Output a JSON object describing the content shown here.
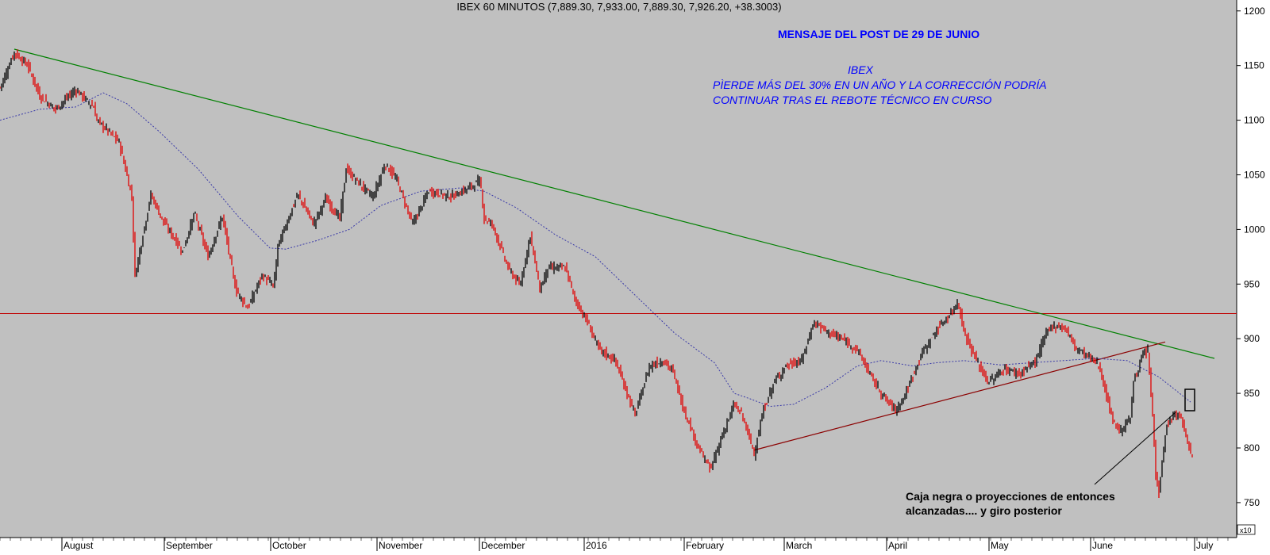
{
  "chart_data": {
    "type": "candlestick",
    "title": "IBEX 60 MINUTOS (7,889.30, 7,933.00, 7,889.30, 7,926.20, +38.3003)",
    "y_scale_label": "x10",
    "ylim": [
      718,
      1210
    ],
    "y_ticks": [
      {
        "value": 1200,
        "label": "1200"
      },
      {
        "value": 1150,
        "label": "1150"
      },
      {
        "value": 1100,
        "label": "1100"
      },
      {
        "value": 1050,
        "label": "1050"
      },
      {
        "value": 1000,
        "label": "1000"
      },
      {
        "value": 950,
        "label": "950"
      },
      {
        "value": 900,
        "label": "900"
      },
      {
        "value": 850,
        "label": "850"
      },
      {
        "value": 800,
        "label": "800"
      },
      {
        "value": 750,
        "label": "750"
      }
    ],
    "x_ticks": [
      "August",
      "September",
      "October",
      "November",
      "December",
      "2016",
      "February",
      "March",
      "April",
      "May",
      "June",
      "July"
    ],
    "price_path": [
      [
        0,
        1130
      ],
      [
        18,
        1162
      ],
      [
        35,
        1150
      ],
      [
        50,
        1122
      ],
      [
        70,
        1110
      ],
      [
        95,
        1128
      ],
      [
        118,
        1112
      ],
      [
        122,
        1100
      ],
      [
        150,
        1080
      ],
      [
        166,
        1030
      ],
      [
        170,
        958
      ],
      [
        190,
        1032
      ],
      [
        205,
        1008
      ],
      [
        230,
        980
      ],
      [
        245,
        1015
      ],
      [
        262,
        975
      ],
      [
        280,
        1012
      ],
      [
        297,
        945
      ],
      [
        312,
        928
      ],
      [
        330,
        958
      ],
      [
        345,
        948
      ],
      [
        350,
        985
      ],
      [
        375,
        1032
      ],
      [
        395,
        1005
      ],
      [
        410,
        1028
      ],
      [
        428,
        1010
      ],
      [
        436,
        1055
      ],
      [
        455,
        1040
      ],
      [
        470,
        1030
      ],
      [
        485,
        1060
      ],
      [
        500,
        1045
      ],
      [
        520,
        1005
      ],
      [
        540,
        1035
      ],
      [
        570,
        1030
      ],
      [
        595,
        1040
      ],
      [
        605,
        1045
      ],
      [
        610,
        1010
      ],
      [
        620,
        1005
      ],
      [
        640,
        965
      ],
      [
        655,
        948
      ],
      [
        668,
        995
      ],
      [
        680,
        945
      ],
      [
        690,
        965
      ],
      [
        712,
        965
      ],
      [
        725,
        935
      ],
      [
        740,
        915
      ],
      [
        755,
        890
      ],
      [
        775,
        880
      ],
      [
        800,
        830
      ],
      [
        818,
        875
      ],
      [
        835,
        880
      ],
      [
        848,
        870
      ],
      [
        860,
        838
      ],
      [
        880,
        800
      ],
      [
        895,
        780
      ],
      [
        910,
        812
      ],
      [
        925,
        840
      ],
      [
        935,
        830
      ],
      [
        950,
        795
      ],
      [
        962,
        835
      ],
      [
        975,
        860
      ],
      [
        990,
        875
      ],
      [
        1010,
        880
      ],
      [
        1025,
        915
      ],
      [
        1045,
        905
      ],
      [
        1060,
        900
      ],
      [
        1080,
        890
      ],
      [
        1100,
        862
      ],
      [
        1115,
        845
      ],
      [
        1128,
        835
      ],
      [
        1140,
        848
      ],
      [
        1160,
        885
      ],
      [
        1180,
        908
      ],
      [
        1200,
        925
      ],
      [
        1206,
        935
      ],
      [
        1215,
        905
      ],
      [
        1230,
        880
      ],
      [
        1245,
        860
      ],
      [
        1265,
        872
      ],
      [
        1285,
        868
      ],
      [
        1305,
        880
      ],
      [
        1315,
        900
      ],
      [
        1325,
        912
      ],
      [
        1342,
        910
      ],
      [
        1355,
        892
      ],
      [
        1375,
        882
      ],
      [
        1385,
        875
      ],
      [
        1393,
        850
      ],
      [
        1402,
        825
      ],
      [
        1412,
        815
      ],
      [
        1425,
        830
      ],
      [
        1428,
        862
      ],
      [
        1440,
        885
      ],
      [
        1446,
        888
      ],
      [
        1452,
        830
      ],
      [
        1456,
        775
      ],
      [
        1460,
        760
      ],
      [
        1465,
        795
      ],
      [
        1470,
        820
      ],
      [
        1478,
        830
      ],
      [
        1488,
        828
      ],
      [
        1495,
        808
      ],
      [
        1502,
        790
      ]
    ],
    "moving_average": [
      [
        0,
        1100
      ],
      [
        50,
        1110
      ],
      [
        95,
        1112
      ],
      [
        130,
        1125
      ],
      [
        160,
        1115
      ],
      [
        200,
        1090
      ],
      [
        250,
        1055
      ],
      [
        300,
        1012
      ],
      [
        340,
        983
      ],
      [
        360,
        982
      ],
      [
        400,
        990
      ],
      [
        440,
        1000
      ],
      [
        480,
        1022
      ],
      [
        530,
        1035
      ],
      [
        580,
        1038
      ],
      [
        610,
        1035
      ],
      [
        650,
        1020
      ],
      [
        700,
        995
      ],
      [
        750,
        975
      ],
      [
        800,
        940
      ],
      [
        850,
        905
      ],
      [
        900,
        878
      ],
      [
        925,
        850
      ],
      [
        945,
        845
      ],
      [
        970,
        838
      ],
      [
        1000,
        840
      ],
      [
        1040,
        855
      ],
      [
        1080,
        875
      ],
      [
        1110,
        880
      ],
      [
        1150,
        875
      ],
      [
        1180,
        878
      ],
      [
        1215,
        880
      ],
      [
        1260,
        876
      ],
      [
        1300,
        878
      ],
      [
        1340,
        880
      ],
      [
        1380,
        882
      ],
      [
        1420,
        880
      ],
      [
        1460,
        865
      ],
      [
        1500,
        842
      ]
    ],
    "annotations": {
      "header": "MENSAJE DEL POST DE 29 DE JUNIO",
      "subject": "IBEX",
      "line1": "PÌERDE MÁS DEL 30% EN UN AÑO Y LA CORRECCIÓN PODRÍA",
      "line2": "CONTINUAR TRAS EL REBOTE TÉCNICO EN CURSO",
      "callout_line1": "Caja negra o proyecciones de entonces",
      "callout_line2": "alcanzadas.... y giro posterior"
    },
    "overlays": {
      "downtrend_line": {
        "start": [
          18,
          1165
        ],
        "end": [
          1530,
          882
        ],
        "color": "#008000"
      },
      "horizontal_support": {
        "value": 923,
        "color": "#c00000"
      },
      "uptrend_line": {
        "start": [
          950,
          798
        ],
        "end": [
          1468,
          897
        ],
        "color": "#8b0000"
      },
      "moving_average_color": "#3a3aa8",
      "bullish_bar_color": "#000000",
      "bearish_bar_color": "#e00000",
      "annotation_color": "#0000ff",
      "background_color": "#c0c0c0"
    }
  }
}
